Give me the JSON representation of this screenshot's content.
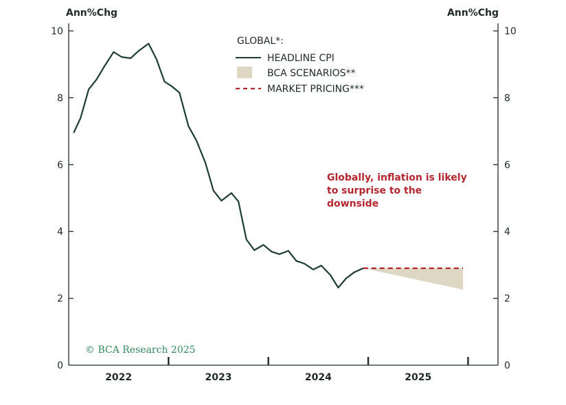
{
  "chart_data": {
    "type": "line",
    "title": "",
    "ylabel_left": "Ann%Chg",
    "ylabel_right": "Ann%Chg",
    "ylim": [
      0,
      10
    ],
    "yticks": [
      "0",
      "2",
      "4",
      "6",
      "8",
      "10"
    ],
    "x_categories": [
      "2022",
      "2023",
      "2024",
      "2025"
    ],
    "x_range": [
      2021.5,
      2025.8
    ],
    "legend_title": "GLOBAL*:",
    "legend_position": "top-center",
    "series": [
      {
        "name": "HEADLINE CPI",
        "style": "solid",
        "color": "#1c3b35",
        "points": [
          [
            2021.55,
            6.95
          ],
          [
            2021.62,
            7.4
          ],
          [
            2021.7,
            8.25
          ],
          [
            2021.78,
            8.55
          ],
          [
            2021.86,
            8.95
          ],
          [
            2021.95,
            9.37
          ],
          [
            2022.03,
            9.22
          ],
          [
            2022.12,
            9.18
          ],
          [
            2022.2,
            9.4
          ],
          [
            2022.3,
            9.62
          ],
          [
            2022.38,
            9.15
          ],
          [
            2022.46,
            8.48
          ],
          [
            2022.53,
            8.35
          ],
          [
            2022.61,
            8.15
          ],
          [
            2022.7,
            7.15
          ],
          [
            2022.78,
            6.72
          ],
          [
            2022.87,
            6.05
          ],
          [
            2022.95,
            5.22
          ],
          [
            2023.03,
            4.92
          ],
          [
            2023.13,
            5.15
          ],
          [
            2023.2,
            4.9
          ],
          [
            2023.28,
            3.76
          ],
          [
            2023.36,
            3.44
          ],
          [
            2023.45,
            3.6
          ],
          [
            2023.53,
            3.4
          ],
          [
            2023.61,
            3.32
          ],
          [
            2023.7,
            3.42
          ],
          [
            2023.78,
            3.12
          ],
          [
            2023.86,
            3.04
          ],
          [
            2023.95,
            2.86
          ],
          [
            2024.03,
            2.98
          ],
          [
            2024.12,
            2.7
          ],
          [
            2024.2,
            2.32
          ],
          [
            2024.28,
            2.6
          ],
          [
            2024.36,
            2.78
          ],
          [
            2024.45,
            2.9
          ]
        ]
      },
      {
        "name": "BCA SCENARIOS**",
        "style": "band",
        "color": "#ddd7c3",
        "upper": [
          [
            2024.45,
            2.9
          ],
          [
            2025.45,
            2.9
          ]
        ],
        "lower": [
          [
            2024.45,
            2.9
          ],
          [
            2025.45,
            2.26
          ]
        ]
      },
      {
        "name": "MARKET PRICING***",
        "style": "dashed",
        "color": "#b5262f",
        "points": [
          [
            2024.45,
            2.9
          ],
          [
            2025.45,
            2.9
          ]
        ]
      }
    ],
    "annotation": [
      "Globally, inflation is likely",
      "to surprise to the",
      "downside"
    ],
    "grid": false
  },
  "footer": {
    "copyright": "© BCA Research 2025"
  }
}
